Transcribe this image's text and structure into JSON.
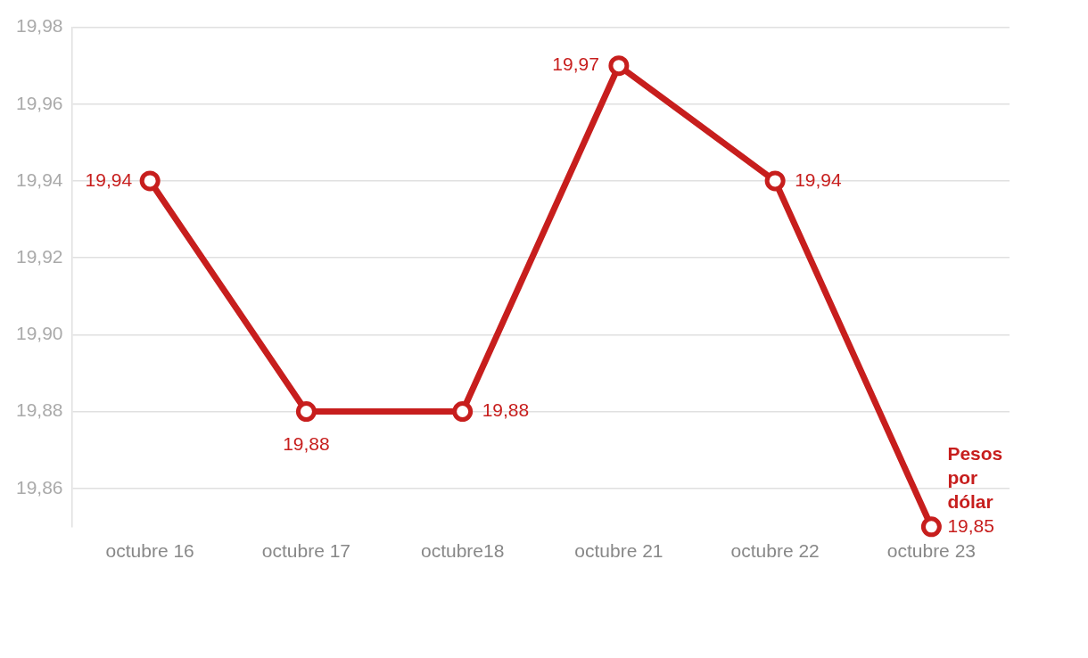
{
  "chart_data": {
    "type": "line",
    "categories": [
      "octubre 16",
      "octubre 17",
      "octubre18",
      "octubre 21",
      "octubre 22",
      "octubre 23"
    ],
    "series": [
      {
        "name": "Pesos por dólar",
        "color": "#c71e1d",
        "values": [
          19.94,
          19.88,
          19.88,
          19.97,
          19.94,
          19.85
        ],
        "value_labels": [
          "19,94",
          "19,88",
          "19,88",
          "19,97",
          "19,94",
          "19,85"
        ]
      }
    ],
    "ylim": [
      19.85,
      19.98
    ],
    "yticks": [
      {
        "value": 19.86,
        "label": "19,86"
      },
      {
        "value": 19.88,
        "label": "19,88"
      },
      {
        "value": 19.9,
        "label": "19,90"
      },
      {
        "value": 19.92,
        "label": "19,92"
      },
      {
        "value": 19.94,
        "label": "19,94"
      },
      {
        "value": 19.96,
        "label": "19,96"
      },
      {
        "value": 19.98,
        "label": "19,98"
      }
    ],
    "grid": "y",
    "legend": false,
    "marker": "circle",
    "line_style": "solid"
  }
}
